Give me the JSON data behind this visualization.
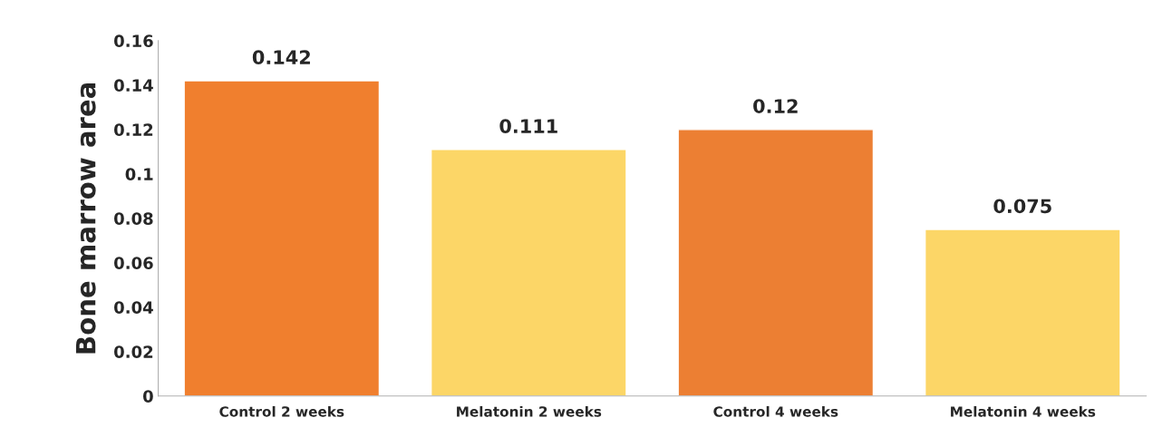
{
  "chart_data": {
    "type": "bar",
    "ylabel": "Bone marrow area",
    "categories": [
      "Control 2 weeks",
      "Melatonin 2 weeks",
      "Control 4 weeks",
      "Melatonin 4 weeks"
    ],
    "values": [
      0.142,
      0.111,
      0.12,
      0.075
    ],
    "colors": [
      "#f07f2e",
      "#fcd667",
      "#ec7f33",
      "#fcd667"
    ],
    "ylim": [
      0,
      0.16
    ],
    "yticks": [
      0,
      0.02,
      0.04,
      0.06,
      0.08,
      0.1,
      0.12,
      0.14,
      0.16
    ],
    "grid": false,
    "data_labels": true
  }
}
